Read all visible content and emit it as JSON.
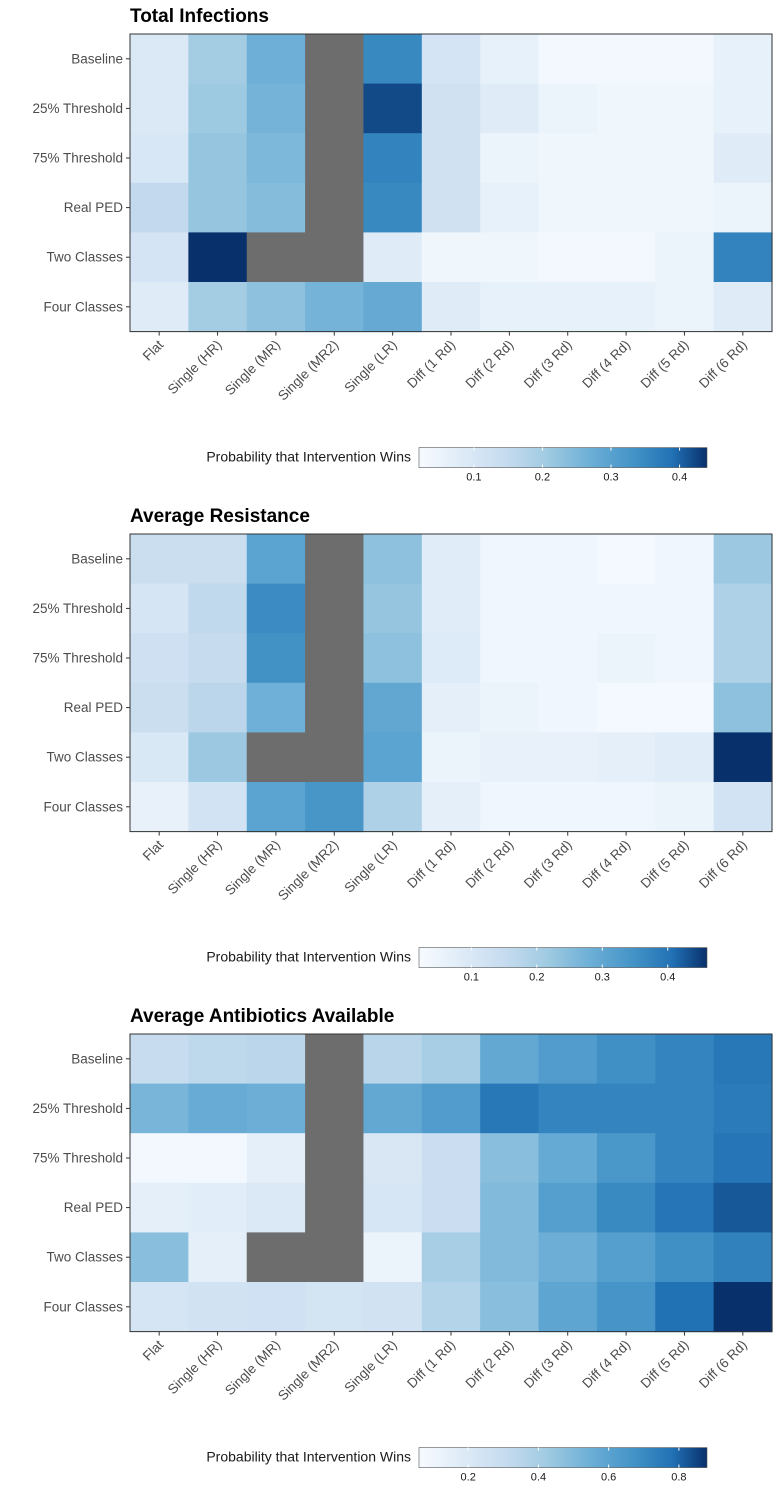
{
  "chart_data": [
    {
      "type": "heatmap",
      "title": "Total Infections",
      "x_categories": [
        "Flat",
        "Single (HR)",
        "Single (MR)",
        "Single (MR2)",
        "Single (LR)",
        "Diff (1 Rd)",
        "Diff (2 Rd)",
        "Diff (3 Rd)",
        "Diff (4 Rd)",
        "Diff (5 Rd)",
        "Diff (6 Rd)"
      ],
      "y_categories": [
        "Baseline",
        "25% Threshold",
        "75% Threshold",
        "Real PED",
        "Two Classes",
        "Four Classes"
      ],
      "values": [
        [
          0.09,
          0.2,
          0.27,
          null,
          0.35,
          0.11,
          0.06,
          0.03,
          0.03,
          0.03,
          0.06
        ],
        [
          0.09,
          0.21,
          0.26,
          null,
          0.42,
          0.12,
          0.08,
          0.05,
          0.04,
          0.04,
          0.06
        ],
        [
          0.1,
          0.22,
          0.25,
          null,
          0.36,
          0.12,
          0.05,
          0.04,
          0.04,
          0.04,
          0.08
        ],
        [
          0.15,
          0.22,
          0.24,
          null,
          0.35,
          0.12,
          0.06,
          0.04,
          0.04,
          0.04,
          0.05
        ],
        [
          0.11,
          0.44,
          null,
          null,
          0.08,
          0.04,
          0.04,
          0.03,
          0.03,
          0.05,
          0.36
        ],
        [
          0.08,
          0.2,
          0.23,
          0.26,
          0.28,
          0.08,
          0.06,
          0.06,
          0.06,
          0.05,
          0.08
        ]
      ],
      "missing_color": "#6d6d6d",
      "legend": {
        "title": "Probability that Intervention Wins",
        "placement": "bottom",
        "min": 0.02,
        "max": 0.44,
        "ticks": [
          0.1,
          0.2,
          0.3,
          0.4
        ],
        "tick_labels": [
          "0.1",
          "0.2",
          "0.3",
          "0.4"
        ]
      }
    },
    {
      "type": "heatmap",
      "title": "Average Resistance",
      "x_categories": [
        "Flat",
        "Single (HR)",
        "Single (MR)",
        "Single (MR2)",
        "Single (LR)",
        "Diff (1 Rd)",
        "Diff (2 Rd)",
        "Diff (3 Rd)",
        "Diff (4 Rd)",
        "Diff (5 Rd)",
        "Diff (6 Rd)"
      ],
      "y_categories": [
        "Baseline",
        "25% Threshold",
        "75% Threshold",
        "Real PED",
        "Two Classes",
        "Four Classes"
      ],
      "values": [
        [
          0.14,
          0.14,
          0.31,
          null,
          0.24,
          0.08,
          0.04,
          0.04,
          0.03,
          0.04,
          0.22
        ],
        [
          0.11,
          0.16,
          0.36,
          null,
          0.23,
          0.08,
          0.04,
          0.04,
          0.04,
          0.04,
          0.19
        ],
        [
          0.13,
          0.15,
          0.35,
          null,
          0.24,
          0.09,
          0.04,
          0.04,
          0.05,
          0.04,
          0.19
        ],
        [
          0.14,
          0.17,
          0.28,
          null,
          0.3,
          0.07,
          0.05,
          0.04,
          0.03,
          0.03,
          0.24
        ],
        [
          0.1,
          0.22,
          null,
          null,
          0.31,
          0.05,
          0.06,
          0.06,
          0.07,
          0.08,
          0.46
        ],
        [
          0.06,
          0.12,
          0.31,
          0.34,
          0.19,
          0.07,
          0.04,
          0.04,
          0.04,
          0.05,
          0.12
        ]
      ],
      "missing_color": "#6d6d6d",
      "legend": {
        "title": "Probability that Intervention Wins",
        "placement": "bottom",
        "min": 0.02,
        "max": 0.46,
        "ticks": [
          0.1,
          0.2,
          0.3,
          0.4
        ],
        "tick_labels": [
          "0.1",
          "0.2",
          "0.3",
          "0.4"
        ]
      }
    },
    {
      "type": "heatmap",
      "title": "Average Antibiotics Available",
      "x_categories": [
        "Flat",
        "Single (HR)",
        "Single (MR)",
        "Single (MR2)",
        "Single (LR)",
        "Diff (1 Rd)",
        "Diff (2 Rd)",
        "Diff (3 Rd)",
        "Diff (4 Rd)",
        "Diff (5 Rd)",
        "Diff (6 Rd)"
      ],
      "y_categories": [
        "Baseline",
        "25% Threshold",
        "75% Threshold",
        "Real PED",
        "Two Classes",
        "Four Classes"
      ],
      "values": [
        [
          0.3,
          0.33,
          0.34,
          null,
          0.35,
          0.4,
          0.58,
          0.63,
          0.68,
          0.72,
          0.76
        ],
        [
          0.52,
          0.56,
          0.55,
          null,
          0.58,
          0.63,
          0.76,
          0.72,
          0.72,
          0.72,
          0.75
        ],
        [
          0.08,
          0.08,
          0.15,
          null,
          0.21,
          0.28,
          0.48,
          0.57,
          0.65,
          0.72,
          0.77
        ],
        [
          0.15,
          0.17,
          0.2,
          null,
          0.22,
          0.28,
          0.5,
          0.62,
          0.7,
          0.77,
          0.82
        ],
        [
          0.48,
          0.15,
          null,
          null,
          0.12,
          0.4,
          0.5,
          0.55,
          0.62,
          0.68,
          0.73
        ],
        [
          0.23,
          0.25,
          0.26,
          0.24,
          0.25,
          0.36,
          0.48,
          0.59,
          0.66,
          0.78,
          0.88
        ]
      ],
      "missing_color": "#6d6d6d",
      "legend": {
        "title": "Probability that Intervention Wins",
        "placement": "bottom",
        "min": 0.06,
        "max": 0.88,
        "ticks": [
          0.2,
          0.4,
          0.6,
          0.8
        ],
        "tick_labels": [
          "0.2",
          "0.4",
          "0.6",
          "0.8"
        ]
      }
    }
  ]
}
